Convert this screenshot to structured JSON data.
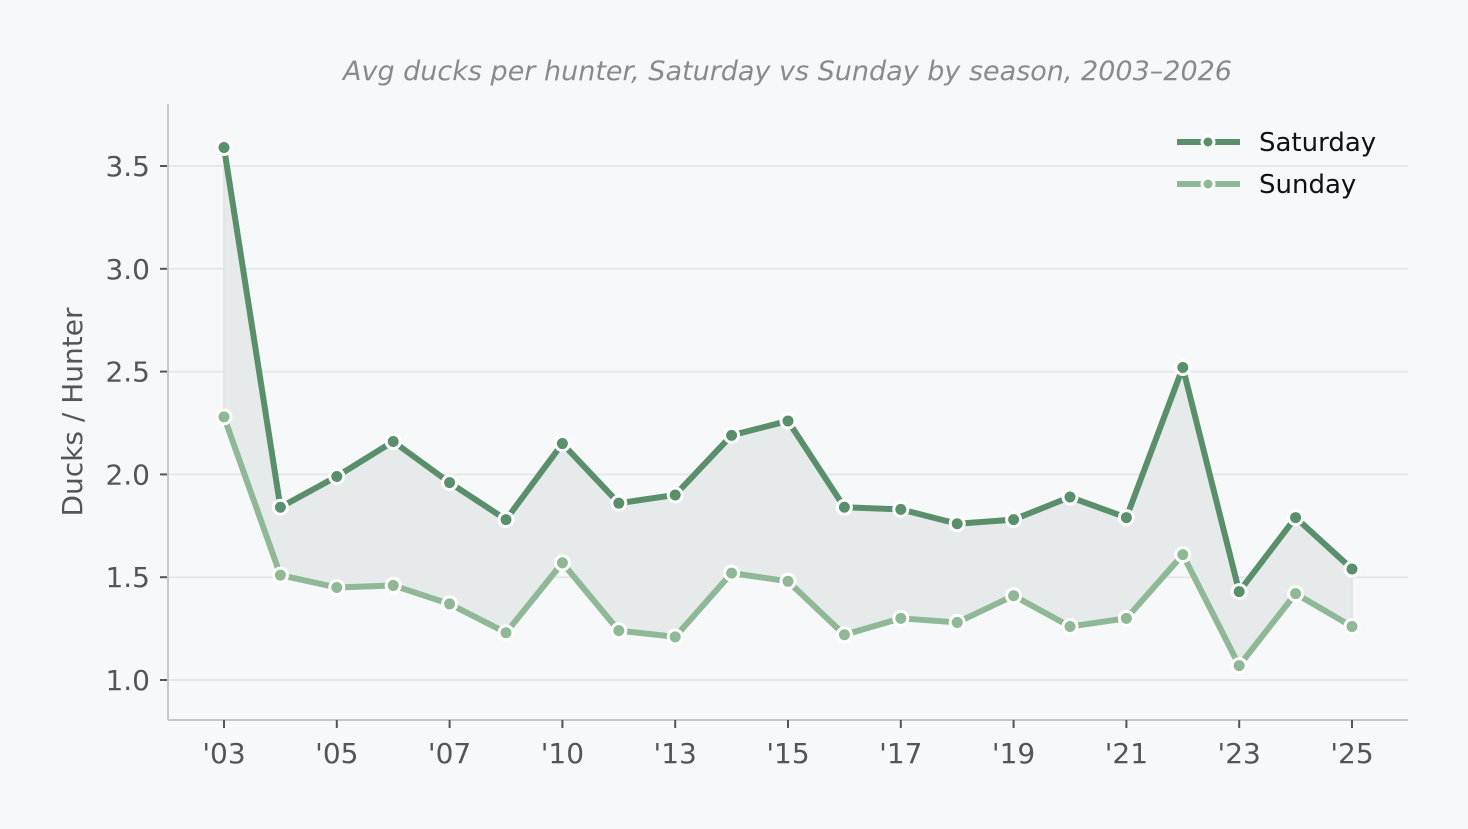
{
  "chart_data": {
    "type": "line",
    "title": "Avg ducks per hunter, Saturday vs Sunday by season, 2003–2026",
    "xlabel": "",
    "ylabel": "Ducks / Hunter",
    "ylim": [
      0.8,
      3.78
    ],
    "yticks": [
      1.0,
      1.5,
      2.0,
      2.5,
      3.0,
      3.5
    ],
    "ytick_labels": [
      "1.0",
      "1.5",
      "2.0",
      "2.5",
      "3.0",
      "3.5"
    ],
    "x": [
      "2003",
      "2004",
      "2005",
      "2006",
      "2007",
      "2008",
      "2010",
      "2012",
      "2013",
      "2014",
      "2015",
      "2016",
      "2017",
      "2018",
      "2019",
      "2020",
      "2021",
      "2022",
      "2023",
      "2024",
      "2025"
    ],
    "xtick_labels": [
      "'03",
      "",
      "'05",
      "",
      "'07",
      "",
      "'10",
      "",
      "'13",
      "",
      "'15",
      "",
      "'17",
      "",
      "'19",
      "",
      "'21",
      "",
      "'23",
      "",
      "'25"
    ],
    "grid": "horizontal",
    "legend_position": "upper right",
    "fill_between": true,
    "series": [
      {
        "name": "Saturday",
        "color": "#5a8f6c",
        "values": [
          3.59,
          1.84,
          1.99,
          2.16,
          1.96,
          1.78,
          2.15,
          1.86,
          1.9,
          2.19,
          2.26,
          1.84,
          1.83,
          1.76,
          1.78,
          1.89,
          1.79,
          2.52,
          1.43,
          1.79,
          1.54
        ]
      },
      {
        "name": "Sunday",
        "color": "#8fb897",
        "values": [
          2.28,
          1.51,
          1.45,
          1.46,
          1.37,
          1.23,
          1.57,
          1.24,
          1.21,
          1.52,
          1.48,
          1.22,
          1.3,
          1.28,
          1.41,
          1.26,
          1.3,
          1.61,
          1.07,
          1.42,
          1.26
        ]
      }
    ]
  },
  "colors": {
    "background": "#f7f8fa",
    "grid": "#e6e7e9",
    "fill": "#e6eaea",
    "spine": "#c8c8c8",
    "text": "#555555"
  }
}
